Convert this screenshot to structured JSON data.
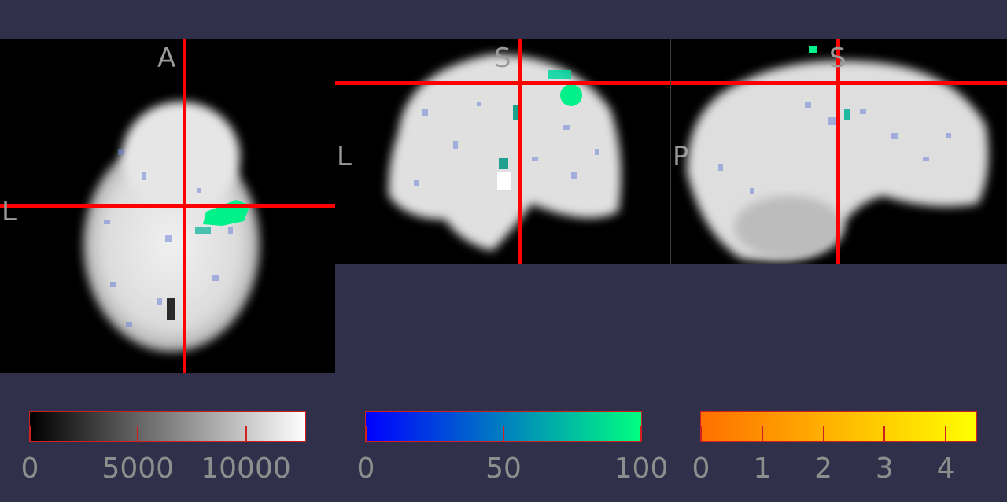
{
  "views": {
    "axial": {
      "top_label": "A",
      "left_label": "L"
    },
    "coronal": {
      "top_label": "S",
      "left_label": "L"
    },
    "sagittal": {
      "top_label": "S",
      "left_label": "P"
    }
  },
  "crosshair_color": "#ff0000",
  "colorbars": [
    {
      "name": "gray",
      "stops": [
        "#000000",
        "#ffffff"
      ],
      "range": [
        0,
        12750
      ],
      "ticks": [
        {
          "value": 0,
          "label": "0"
        },
        {
          "value": 5000,
          "label": "5000"
        },
        {
          "value": 10000,
          "label": "10000"
        }
      ]
    },
    {
      "name": "winter",
      "stops": [
        "#0000ff",
        "#00ff80"
      ],
      "range": [
        0,
        100
      ],
      "ticks": [
        {
          "value": 0,
          "label": "0"
        },
        {
          "value": 50,
          "label": "50"
        },
        {
          "value": 100,
          "label": "100"
        }
      ]
    },
    {
      "name": "warm",
      "stops": [
        "#ff7000",
        "#ffff00"
      ],
      "range": [
        0,
        4.5
      ],
      "ticks": [
        {
          "value": 0,
          "label": "0"
        },
        {
          "value": 1,
          "label": "1"
        },
        {
          "value": 2,
          "label": "2"
        },
        {
          "value": 3,
          "label": "3"
        },
        {
          "value": 4,
          "label": "4"
        }
      ]
    }
  ]
}
